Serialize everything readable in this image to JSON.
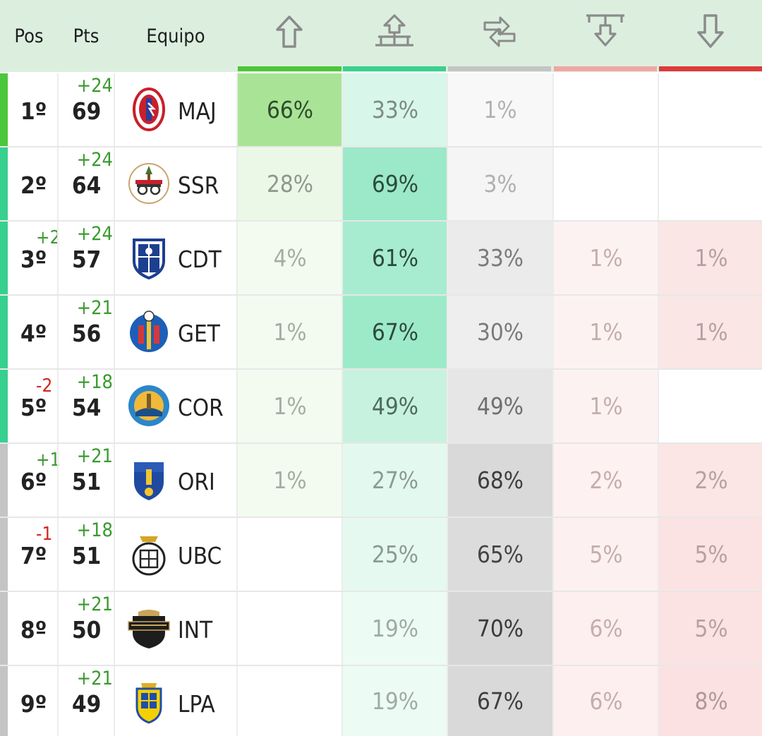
{
  "header": {
    "pos": "Pos",
    "pts": "Pts",
    "team": "Equipo",
    "columns": [
      {
        "icon": "arrow-up-icon",
        "bar": "#4cc63a"
      },
      {
        "icon": "playoff-up-icon",
        "bar": "#38d08f"
      },
      {
        "icon": "swap-icon",
        "bar": "#c4c4c4"
      },
      {
        "icon": "playoff-down-icon",
        "bar": "#f1a6a1"
      },
      {
        "icon": "arrow-down-icon",
        "bar": "#dd3a3a"
      }
    ]
  },
  "rows": [
    {
      "pos": "1º",
      "pos_change": "",
      "pts_change": "+24",
      "pts": "69",
      "team": "MAJ",
      "logo": "majadahonda-crest-icon",
      "stripe": "#4cc63a",
      "p": [
        "66%",
        "33%",
        "1%",
        "",
        ""
      ]
    },
    {
      "pos": "2º",
      "pos_change": "",
      "pts_change": "+24",
      "pts": "64",
      "team": "SSR",
      "logo": "ssreyes-crest-icon",
      "stripe": "#38d08f",
      "p": [
        "28%",
        "69%",
        "3%",
        "",
        ""
      ]
    },
    {
      "pos": "3º",
      "pos_change": "+2",
      "pts_change": "+24",
      "pts": "57",
      "team": "CDT",
      "logo": "tenerife-crest-icon",
      "stripe": "#38d08f",
      "p": [
        "4%",
        "61%",
        "33%",
        "1%",
        "1%"
      ]
    },
    {
      "pos": "4º",
      "pos_change": "",
      "pts_change": "+21",
      "pts": "56",
      "team": "GET",
      "logo": "getafe-crest-icon",
      "stripe": "#38d08f",
      "p": [
        "1%",
        "67%",
        "30%",
        "1%",
        "1%"
      ]
    },
    {
      "pos": "5º",
      "pos_change": "-2",
      "pts_change": "+18",
      "pts": "54",
      "team": "COR",
      "logo": "coria-crest-icon",
      "stripe": "#38d08f",
      "p": [
        "1%",
        "49%",
        "49%",
        "1%",
        ""
      ]
    },
    {
      "pos": "6º",
      "pos_change": "+1",
      "pts_change": "+21",
      "pts": "51",
      "team": "ORI",
      "logo": "orihuela-crest-icon",
      "stripe": "#c4c4c4",
      "p": [
        "1%",
        "27%",
        "68%",
        "2%",
        "2%"
      ]
    },
    {
      "pos": "7º",
      "pos_change": "-1",
      "pts_change": "+18",
      "pts": "51",
      "team": "UBC",
      "logo": "balompedica-crest-icon",
      "stripe": "#c4c4c4",
      "p": [
        "",
        "25%",
        "65%",
        "5%",
        "5%"
      ]
    },
    {
      "pos": "8º",
      "pos_change": "",
      "pts_change": "+21",
      "pts": "50",
      "team": "INT",
      "logo": "intercity-crest-icon",
      "stripe": "#c4c4c4",
      "p": [
        "",
        "19%",
        "70%",
        "6%",
        "5%"
      ]
    },
    {
      "pos": "9º",
      "pos_change": "",
      "pts_change": "+21",
      "pts": "49",
      "team": "LPA",
      "logo": "laspalmas-crest-icon",
      "stripe": "#c4c4c4",
      "p": [
        "",
        "19%",
        "67%",
        "6%",
        "8%"
      ]
    }
  ]
}
